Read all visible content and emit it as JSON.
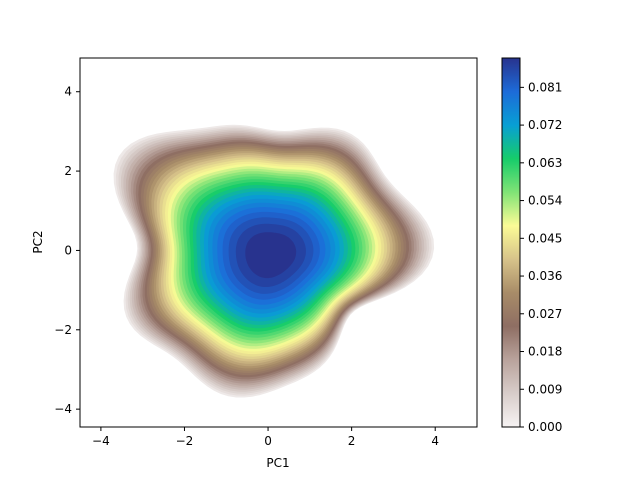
{
  "chart_data": {
    "type": "heatmap",
    "subtype": "kde-filled-contour",
    "title": "",
    "xlabel": "PC1",
    "ylabel": "PC2",
    "xlim": [
      -4.5,
      5.0
    ],
    "ylim": [
      -4.45,
      4.85
    ],
    "xticks": [
      -4,
      -2,
      0,
      2,
      4
    ],
    "yticks": [
      -4,
      -2,
      0,
      2,
      4
    ],
    "grid": false,
    "colormap": "terrain_r",
    "density_peak": {
      "x": -0.2,
      "y": 0.05,
      "value": 0.088
    },
    "colorbar": {
      "min": 0.0,
      "max": 0.088,
      "ticks": [
        "0.000",
        "0.009",
        "0.018",
        "0.027",
        "0.036",
        "0.045",
        "0.054",
        "0.063",
        "0.072",
        "0.081"
      ],
      "tick_values": [
        0.0,
        0.009,
        0.018,
        0.027,
        0.036,
        0.045,
        0.054,
        0.063,
        0.072,
        0.081
      ]
    },
    "colors": [
      "#f6f3f3",
      "#d8cdca",
      "#b9a39c",
      "#8e6e63",
      "#a88c68",
      "#d7c38a",
      "#fbfb96",
      "#80e376",
      "#16cc6a",
      "#089fd4",
      "#1d6bd8",
      "#28338e"
    ]
  }
}
